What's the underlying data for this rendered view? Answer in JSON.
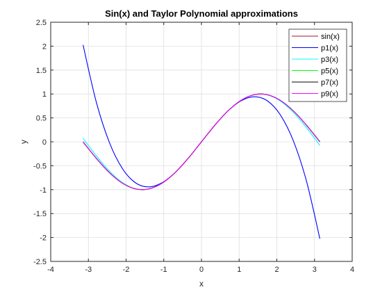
{
  "chart_data": {
    "type": "line",
    "title": "Sin(x) and Taylor Polynomial approximations",
    "xlabel": "x",
    "ylabel": "y",
    "xlim": [
      -4,
      4
    ],
    "ylim": [
      -2.5,
      2.5
    ],
    "xticks": [
      -4,
      -3,
      -2,
      -1,
      0,
      1,
      2,
      3,
      4
    ],
    "yticks": [
      -2.5,
      -2,
      -1.5,
      -1,
      -0.5,
      0,
      0.5,
      1,
      1.5,
      2,
      2.5
    ],
    "xtick_labels": [
      "-4",
      "-3",
      "-2",
      "-1",
      "0",
      "1",
      "2",
      "3",
      "4"
    ],
    "ytick_labels": [
      "-2.5",
      "-2",
      "-1.5",
      "-1",
      "-0.5",
      "0",
      "0.5",
      "1",
      "1.5",
      "2",
      "2.5"
    ],
    "grid": true,
    "legend_position": "top-right",
    "x": [
      -3.1416,
      -2.7925,
      -2.4435,
      -2.0944,
      -1.7453,
      -1.3963,
      -1.0472,
      -0.6981,
      -0.3491,
      0,
      0.3491,
      0.6981,
      1.0472,
      1.3963,
      1.7453,
      2.0944,
      2.4435,
      2.7925,
      3.1416
    ],
    "series": [
      {
        "name": "sin(x)",
        "color": "#a2142f",
        "values": [
          0,
          -0.342,
          -0.6428,
          -0.866,
          -0.9848,
          -0.9848,
          -0.866,
          -0.6428,
          -0.342,
          0,
          0.342,
          0.6428,
          0.866,
          0.9848,
          0.9848,
          0.866,
          0.6428,
          0.342,
          0
        ]
      },
      {
        "name": "p1(x)",
        "color": "#0000ff",
        "values": [
          2.0261,
          0.8369,
          -0.0119,
          -0.563,
          -0.8593,
          -0.9426,
          -0.8558,
          -0.6414,
          -0.342,
          0,
          0.342,
          0.6414,
          0.8558,
          0.9426,
          0.8593,
          0.563,
          0.0119,
          -0.8369,
          -2.0261
        ]
      },
      {
        "name": "p3(x)",
        "color": "#00ffff",
        "values": [
          0.0752,
          -0.2902,
          -0.6117,
          -0.8534,
          -0.9824,
          -0.9846,
          -0.866,
          -0.6428,
          -0.342,
          0,
          0.342,
          0.6428,
          0.866,
          0.9846,
          0.9824,
          0.8534,
          0.6117,
          0.2902,
          -0.0752
        ]
      },
      {
        "name": "p5(x)",
        "color": "#00ff00",
        "values": [
          -0.0069,
          -0.3463,
          -0.6446,
          -0.8664,
          -0.9848,
          -0.9848,
          -0.866,
          -0.6428,
          -0.342,
          0,
          0.342,
          0.6428,
          0.866,
          0.9848,
          0.9848,
          0.8664,
          0.6446,
          0.3463,
          0.0069
        ]
      },
      {
        "name": "p7(x)",
        "color": "#000000",
        "values": [
          0.0004,
          -0.3418,
          -0.6427,
          -0.866,
          -0.9848,
          -0.9848,
          -0.866,
          -0.6428,
          -0.342,
          0,
          0.342,
          0.6428,
          0.866,
          0.9848,
          0.9848,
          0.866,
          0.6427,
          0.3418,
          -0.0004
        ]
      },
      {
        "name": "p9(x)",
        "color": "#ff00ff",
        "values": [
          0,
          -0.342,
          -0.6428,
          -0.866,
          -0.9848,
          -0.9848,
          -0.866,
          -0.6428,
          -0.342,
          0,
          0.342,
          0.6428,
          0.866,
          0.9848,
          0.9848,
          0.866,
          0.6428,
          0.342,
          0
        ]
      }
    ]
  }
}
